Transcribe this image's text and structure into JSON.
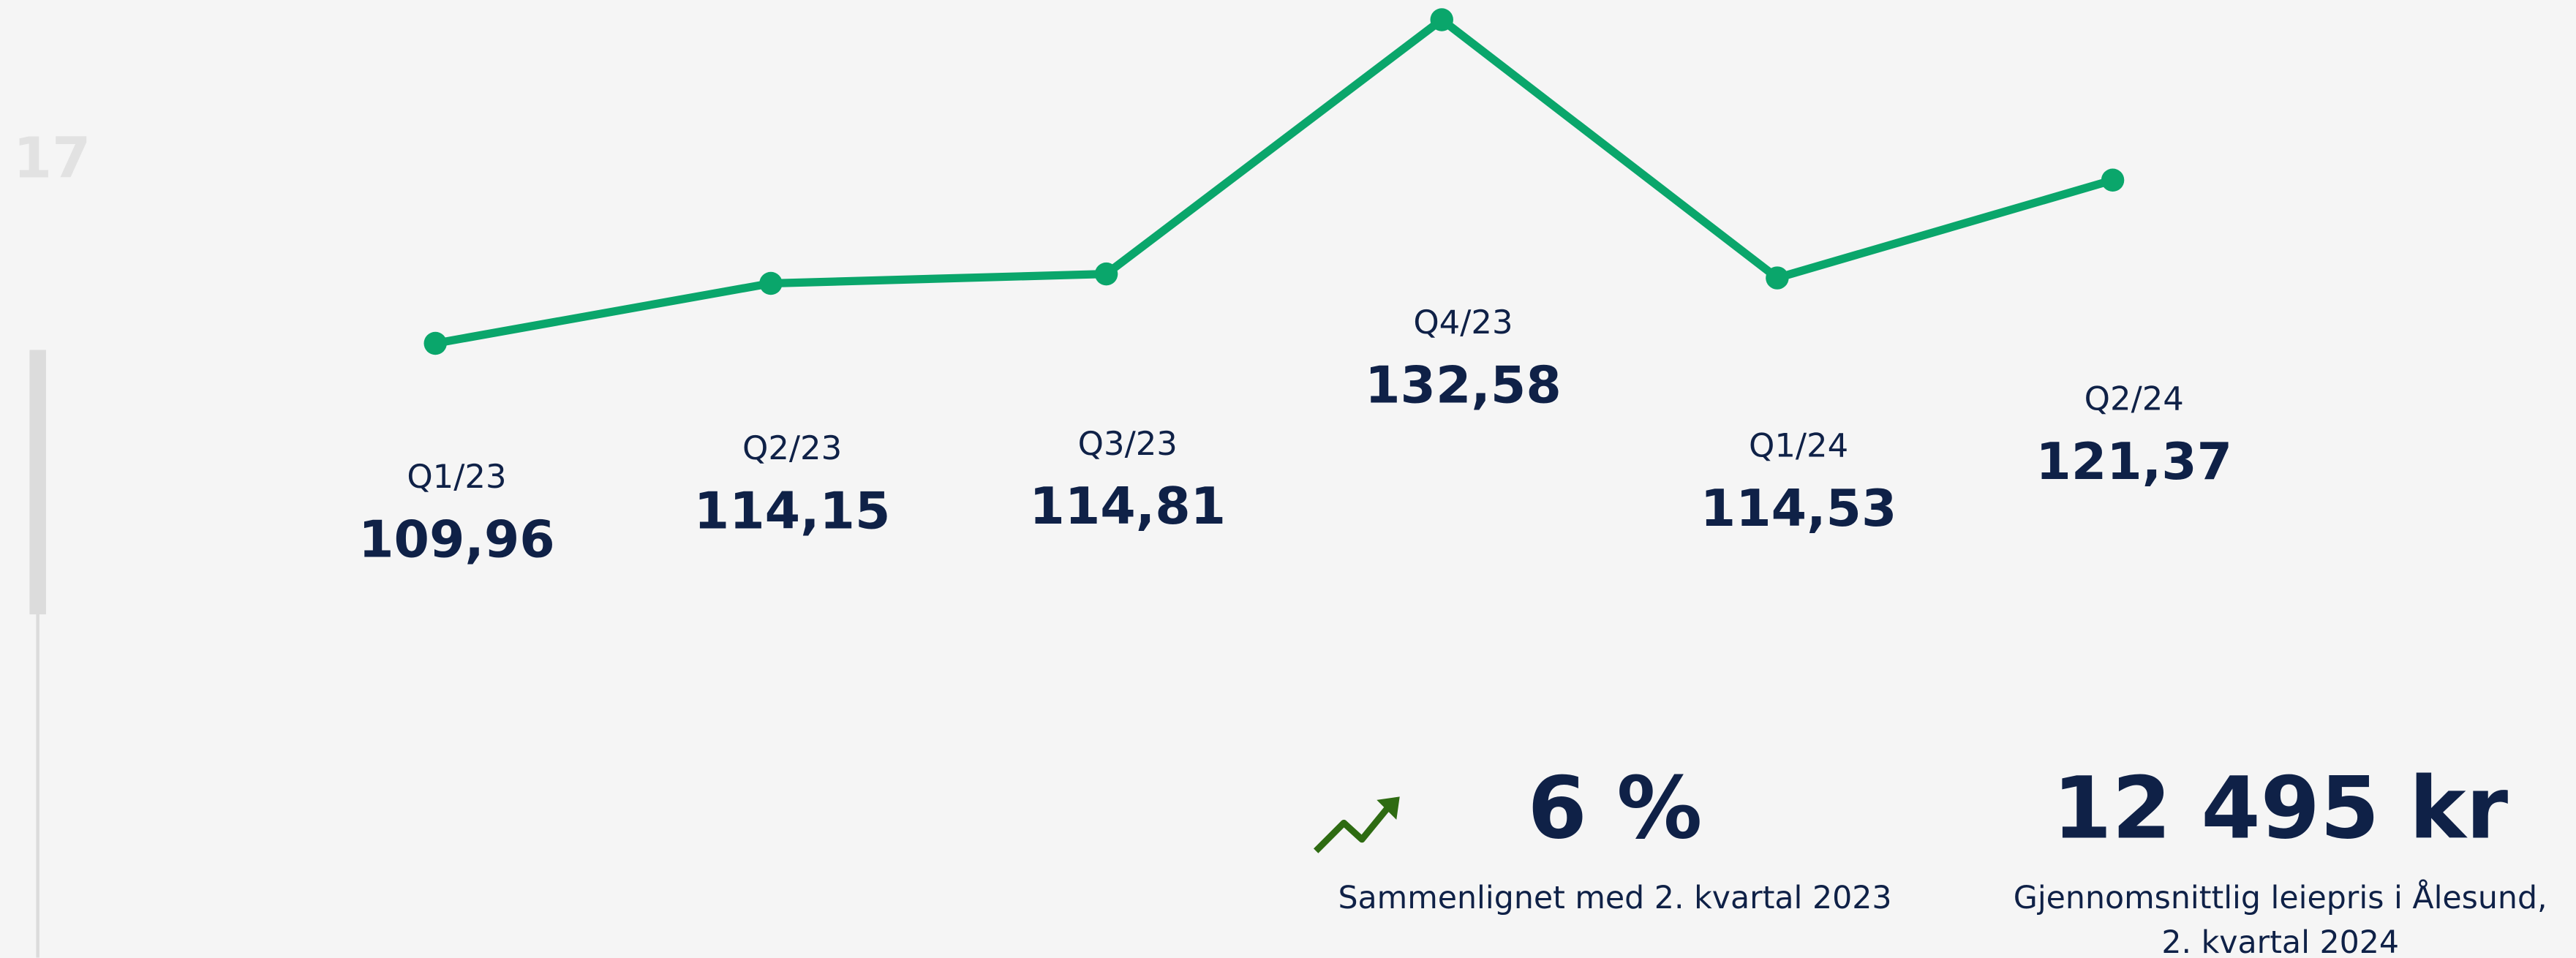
{
  "chart_data": {
    "type": "line",
    "categories": [
      "Q1/23",
      "Q2/23",
      "Q3/23",
      "Q4/23",
      "Q1/24",
      "Q2/24"
    ],
    "values": [
      109.96,
      114.15,
      114.81,
      132.58,
      114.53,
      121.37
    ],
    "value_labels": [
      "109,96",
      "114,15",
      "114,81",
      "132,58",
      "114,53",
      "121,37"
    ],
    "color": "#0aa66b"
  },
  "page": {
    "side_number": "17",
    "stats": [
      {
        "value": "6 %",
        "caption": [
          "Sammenlignet med 2. kvartal 2023"
        ]
      },
      {
        "value": "12 495 kr",
        "caption": [
          "Gjennomsnittlig leiepris i Ålesund,",
          "2. kvartal 2024"
        ]
      }
    ]
  }
}
